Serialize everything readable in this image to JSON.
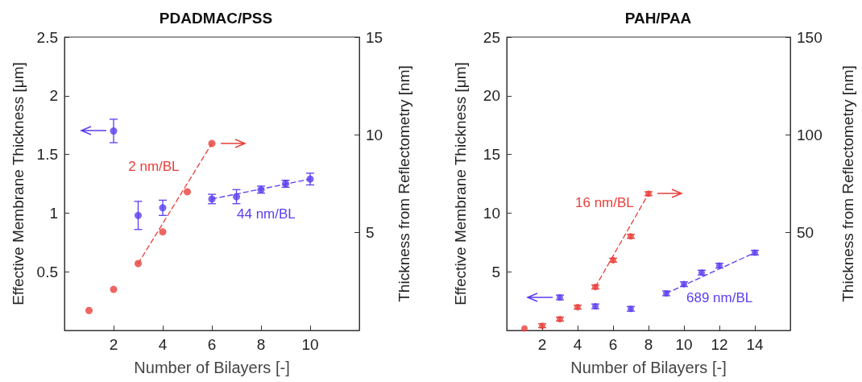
{
  "chart_data": [
    {
      "type": "scatter",
      "title": "PDADMAC/PSS",
      "xlabel": "Number of Bilayers [-]",
      "ylabel": "Effective Membrane Thickness [μm]",
      "y2label": "Thickness from Reflectometry [nm]",
      "xlim": [
        0,
        12
      ],
      "xticks": [
        2,
        4,
        6,
        8,
        10
      ],
      "ylim": [
        0,
        2.5
      ],
      "yticks": [
        0.5,
        1,
        1.5,
        2,
        2.5
      ],
      "y2lim": [
        0,
        15
      ],
      "y2ticks": [
        5,
        10,
        15
      ],
      "grid": false,
      "marker": "circle",
      "series": [
        {
          "color": "#5a3ff0",
          "x": [
            2,
            3,
            4,
            6,
            7,
            8,
            9,
            10
          ],
          "values": [
            1.7,
            0.98,
            1.045,
            1.12,
            1.14,
            1.2,
            1.25,
            1.29
          ],
          "errors": [
            0.1,
            0.12,
            0.065,
            0.04,
            0.06,
            0.03,
            0.03,
            0.05
          ]
        },
        {
          "type": "line",
          "color": "#5a3ff0",
          "line_style": "dashed",
          "marker": "none",
          "x": [
            6,
            10
          ],
          "values": [
            1.12,
            1.29
          ]
        },
        {
          "color": "#e8403a",
          "axis": "y2",
          "x": [
            1,
            2,
            3,
            4,
            5,
            6
          ],
          "values": [
            1.02,
            2.1,
            3.42,
            5.04,
            7.09,
            9.56
          ]
        },
        {
          "type": "line",
          "color": "#e8403a",
          "axis": "y2",
          "line_style": "dashed",
          "marker": "none",
          "x": [
            3,
            6
          ],
          "values": [
            3.42,
            9.56
          ]
        }
      ],
      "annotations": [
        "44 nm/BL",
        "2 nm/BL"
      ]
    },
    {
      "type": "scatter",
      "title": "PAH/PAA",
      "xlabel": "Number of Bilayers [-]",
      "ylabel": "Effective Membrane Thickness [μm]",
      "y2label": "Thickness from Reflectometry [nm]",
      "xlim": [
        0,
        16
      ],
      "xticks": [
        2,
        4,
        6,
        8,
        10,
        12,
        14
      ],
      "ylim": [
        0,
        25
      ],
      "yticks": [
        5,
        10,
        15,
        20,
        25
      ],
      "y2lim": [
        0,
        150
      ],
      "y2ticks": [
        50,
        100,
        150
      ],
      "grid": false,
      "marker": "circle",
      "series": [
        {
          "color": "#5a3ff0",
          "x": [
            3,
            5,
            7,
            9,
            10,
            11,
            12,
            14
          ],
          "values": [
            2.81,
            2.05,
            1.84,
            3.16,
            3.94,
            4.93,
            5.52,
            6.63
          ],
          "errors": [
            0.2,
            0.2,
            0.2,
            0.2,
            0.2,
            0.2,
            0.2,
            0.2
          ]
        },
        {
          "type": "line",
          "color": "#5a3ff0",
          "line_style": "dashed",
          "marker": "none",
          "x": [
            9,
            14
          ],
          "values": [
            3.16,
            6.63
          ]
        },
        {
          "color": "#e8403a",
          "axis": "y2",
          "x": [
            1,
            2,
            3,
            4,
            5,
            6,
            7,
            8
          ],
          "values": [
            1.0,
            2.4,
            5.8,
            11.9,
            22.2,
            35.9,
            48.1,
            69.9
          ],
          "errors": [
            null,
            1,
            1,
            1,
            1,
            1,
            1,
            1
          ]
        },
        {
          "type": "line",
          "color": "#e8403a",
          "axis": "y2",
          "line_style": "dashed",
          "marker": "none",
          "x": [
            5,
            8
          ],
          "values": [
            22.2,
            69.9
          ]
        }
      ],
      "annotations": [
        "689 nm/BL",
        "16 nm/BL"
      ]
    }
  ]
}
